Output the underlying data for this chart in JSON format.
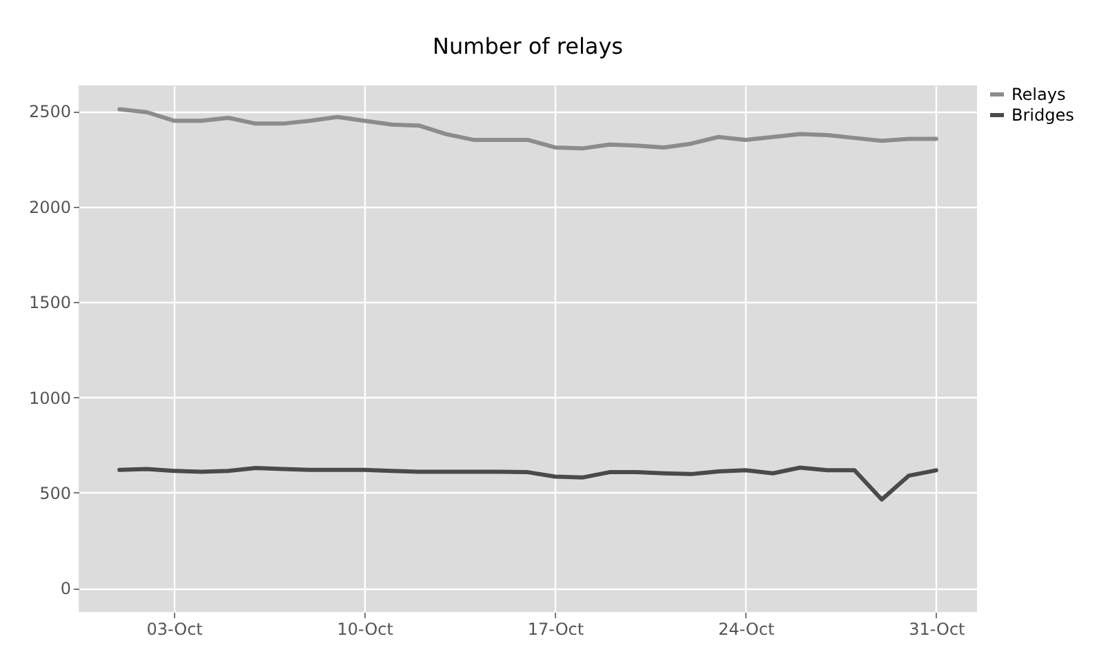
{
  "chart_data": {
    "type": "line",
    "title": "Number of relays",
    "x": [
      "--10-01",
      "--10-02",
      "--10-03",
      "--10-04",
      "--10-05",
      "--10-06",
      "--10-07",
      "--10-08",
      "--10-09",
      "--10-10",
      "--10-11",
      "--10-12",
      "--10-13",
      "--10-14",
      "--10-15",
      "--10-16",
      "--10-17",
      "--10-18",
      "--10-19",
      "--10-20",
      "--10-21",
      "--10-22",
      "--10-23",
      "--10-24",
      "--10-25",
      "--10-26",
      "--10-27",
      "--10-28",
      "--10-29",
      "--10-30",
      "--10-31"
    ],
    "series": [
      {
        "name": "Relays",
        "color": "#8c8c8c",
        "values": [
          2510,
          2495,
          2450,
          2450,
          2465,
          2435,
          2435,
          2450,
          2470,
          2450,
          2430,
          2425,
          2380,
          2350,
          2350,
          2350,
          2310,
          2305,
          2325,
          2320,
          2310,
          2330,
          2365,
          2350,
          2365,
          2380,
          2375,
          2360,
          2345,
          2355,
          2355
        ]
      },
      {
        "name": "Bridges",
        "color": "#4a4a4a",
        "values": [
          620,
          625,
          615,
          610,
          615,
          630,
          625,
          620,
          620,
          620,
          615,
          610,
          610,
          610,
          610,
          608,
          585,
          580,
          608,
          608,
          602,
          598,
          612,
          618,
          602,
          632,
          618,
          618,
          465,
          590,
          618
        ]
      }
    ],
    "xlim": [
      "--09-29T12:00",
      "--11-01T12:00"
    ],
    "xticks": [
      {
        "value": "--10-03",
        "label": "03-Oct"
      },
      {
        "value": "--10-10",
        "label": "10-Oct"
      },
      {
        "value": "--10-17",
        "label": "17-Oct"
      },
      {
        "value": "--10-24",
        "label": "24-Oct"
      },
      {
        "value": "--10-31",
        "label": "31-Oct"
      }
    ],
    "ylim": [
      -125,
      2635
    ],
    "yticks": [
      0,
      500,
      1000,
      1500,
      2000,
      2500
    ],
    "grid": true,
    "legend": "right",
    "marker": "none",
    "line_style": "solid"
  }
}
